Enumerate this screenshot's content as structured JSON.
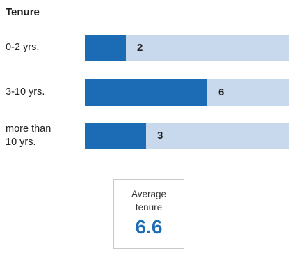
{
  "chart_data": {
    "type": "bar",
    "title": "Tenure",
    "categories": [
      "0-2 yrs.",
      "3-10 yrs.",
      "more than 10 yrs."
    ],
    "values": [
      2,
      6,
      3
    ],
    "xlim": [
      0,
      10
    ],
    "grid": false,
    "colors": {
      "bar": "#1b6cb5",
      "track": "#c8d8ed"
    }
  },
  "summary": {
    "label": "Average tenure",
    "value": "6.6"
  }
}
